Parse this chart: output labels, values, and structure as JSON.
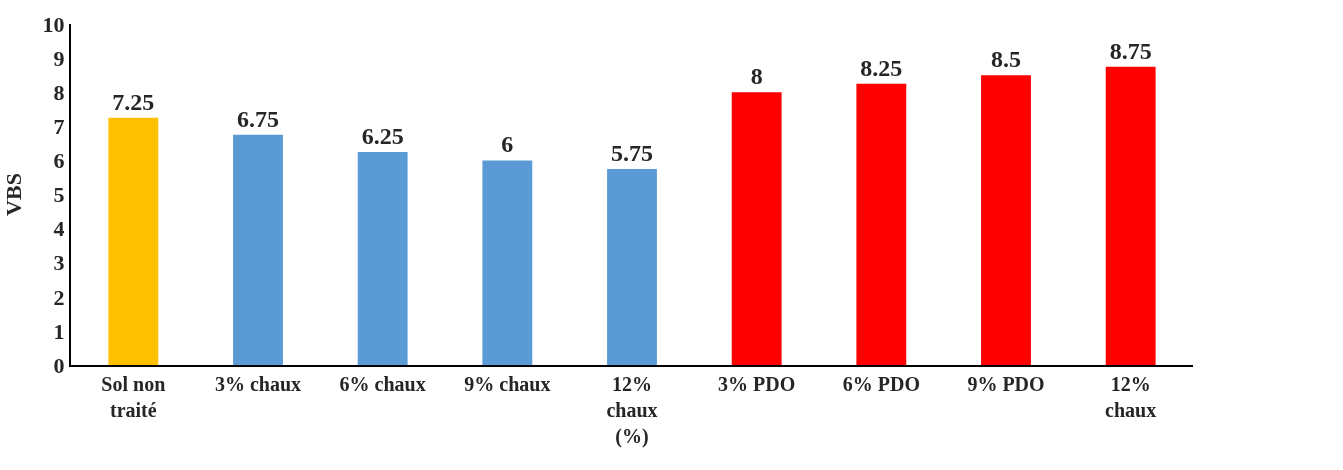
{
  "chart_data": {
    "type": "bar",
    "ylabel": "VBS",
    "categories": [
      "Sol non traité",
      "3% chaux",
      "6% chaux",
      "9% chaux",
      "12% chaux (%)",
      "3% PDO",
      "6% PDO",
      "9% PDO",
      "12% chaux"
    ],
    "values": [
      7.25,
      6.75,
      6.25,
      6,
      5.75,
      8,
      8.25,
      8.5,
      8.75
    ],
    "colors": [
      "#ffc000",
      "#5b9bd5",
      "#5b9bd5",
      "#5b9bd5",
      "#5b9bd5",
      "#ff0000",
      "#ff0000",
      "#ff0000",
      "#ff0000"
    ],
    "ylim": [
      0,
      10
    ],
    "yticks": [
      0,
      1,
      2,
      3,
      4,
      5,
      6,
      7,
      8,
      9,
      10
    ],
    "data_labels": true
  }
}
